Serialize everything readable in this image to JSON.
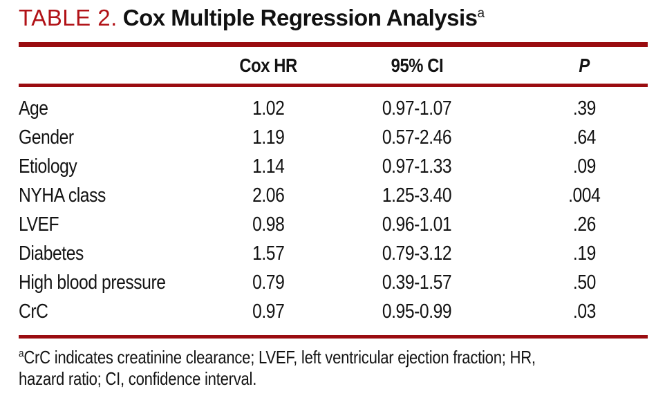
{
  "title": {
    "label": "TABLE 2.",
    "text": "Cox Multiple Regression Analysis",
    "superscript": "a"
  },
  "table": {
    "columns": [
      "",
      "Cox HR",
      "95% CI",
      "P"
    ],
    "rows": [
      {
        "label": "Age",
        "hr": "1.02",
        "ci": "0.97-1.07",
        "p": ".39"
      },
      {
        "label": "Gender",
        "hr": "1.19",
        "ci": "0.57-2.46",
        "p": ".64"
      },
      {
        "label": "Etiology",
        "hr": "1.14",
        "ci": "0.97-1.33",
        "p": ".09"
      },
      {
        "label": "NYHA class",
        "hr": "2.06",
        "ci": "1.25-3.40",
        "p": ".004"
      },
      {
        "label": "LVEF",
        "hr": "0.98",
        "ci": "0.96-1.01",
        "p": ".26"
      },
      {
        "label": "Diabetes",
        "hr": "1.57",
        "ci": "0.79-3.12",
        "p": ".19"
      },
      {
        "label": "High blood pressure",
        "hr": "0.79",
        "ci": "0.39-1.57",
        "p": ".50"
      },
      {
        "label": "CrC",
        "hr": "0.97",
        "ci": "0.95-0.99",
        "p": ".03"
      }
    ]
  },
  "footnote": {
    "superscript": "a",
    "text": "CrC indicates creatinine clearance; LVEF, left ventricular ejection fraction; HR, hazard ratio; CI, confidence interval."
  },
  "colors": {
    "accent_red": "#b11217",
    "rule_red": "#9a0c10",
    "text": "#131313"
  }
}
